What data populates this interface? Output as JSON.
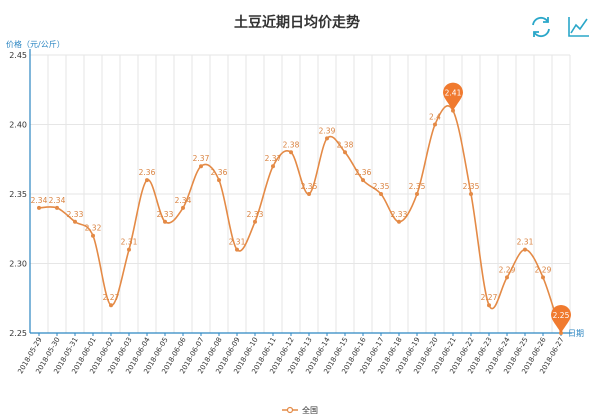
{
  "toolbox": {
    "refresh_icon": "refresh-icon",
    "line_chart_icon": "line-chart-icon"
  },
  "colors": {
    "line": "#e48a46",
    "axis": "#2c86c2",
    "grid": "#e6e6e6",
    "pin": "#f07a2f"
  },
  "chart_data": {
    "type": "line",
    "title": "土豆近期日均价走势",
    "ylabel": "价格（元/公斤）",
    "xlabel": "日期",
    "ylim": [
      2.25,
      2.45
    ],
    "yticks": [
      "2.25",
      "2.30",
      "2.35",
      "2.40",
      "2.45"
    ],
    "grid": true,
    "legend_position": "bottom-center",
    "categories": [
      "2018-05-29",
      "2018-05-30",
      "2018-05-31",
      "2018-06-01",
      "2018-06-02",
      "2018-06-03",
      "2018-06-04",
      "2018-06-05",
      "2018-06-06",
      "2018-06-07",
      "2018-06-08",
      "2018-06-09",
      "2018-06-10",
      "2018-06-11",
      "2018-06-12",
      "2018-06-13",
      "2018-06-14",
      "2018-06-15",
      "2018-06-16",
      "2018-06-17",
      "2018-06-18",
      "2018-06-19",
      "2018-06-20",
      "2018-06-21",
      "2018-06-22",
      "2018-06-23",
      "2018-06-24",
      "2018-06-25",
      "2018-06-26",
      "2018-06-27"
    ],
    "series": [
      {
        "name": "全国",
        "values": [
          2.34,
          2.34,
          2.33,
          2.32,
          2.27,
          2.31,
          2.36,
          2.33,
          2.34,
          2.37,
          2.36,
          2.31,
          2.33,
          2.37,
          2.38,
          2.35,
          2.39,
          2.38,
          2.36,
          2.35,
          2.33,
          2.35,
          2.4,
          2.41,
          2.35,
          2.27,
          2.29,
          2.31,
          2.29,
          2.25
        ],
        "labels": [
          "2.34",
          "2.34",
          "2.33",
          "2.32",
          "2.27",
          "2.31",
          "2.36",
          "2.33",
          "2.34",
          "2.37",
          "2.36",
          "2.31",
          "2.33",
          "2.37",
          "2.38",
          "2.35",
          "2.39",
          "2.38",
          "2.36",
          "2.35",
          "2.33",
          "2.35",
          "2.4",
          "2.41",
          "2.35",
          "2.27",
          "2.29",
          "2.31",
          "2.29",
          "2.25"
        ],
        "max_marker": {
          "value": "2.41",
          "category": "2018-06-21"
        },
        "min_marker": {
          "value": "2.25",
          "category": "2018-06-27"
        }
      }
    ]
  }
}
